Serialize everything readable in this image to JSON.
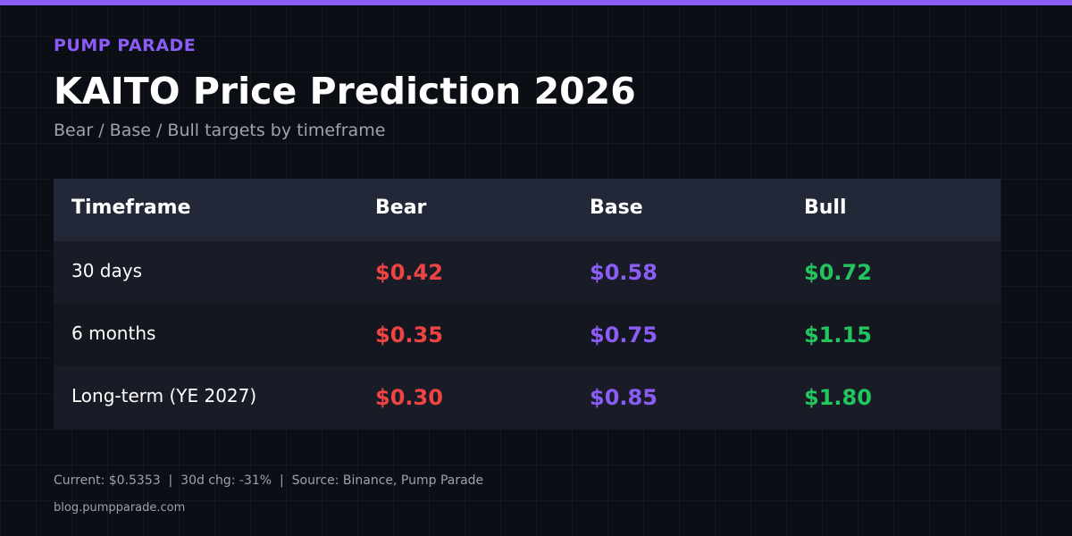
{
  "header": {
    "brand": "PUMP PARADE",
    "title": "KAITO Price Prediction 2026",
    "subtitle": "Bear / Base / Bull targets by timeframe"
  },
  "table": {
    "columns": [
      "Timeframe",
      "Bear",
      "Base",
      "Bull"
    ],
    "rows": [
      [
        "30 days",
        "$0.42",
        "$0.58",
        "$0.72"
      ],
      [
        "6 months",
        "$0.35",
        "$0.75",
        "$1.15"
      ],
      [
        "Long-term (YE 2027)",
        "$0.30",
        "$0.85",
        "$1.80"
      ]
    ]
  },
  "footer": {
    "note": "Current: $0.5353  |  30d chg: -31%  |  Source: Binance, Pump Parade",
    "url": "blog.pumpparade.com"
  }
}
